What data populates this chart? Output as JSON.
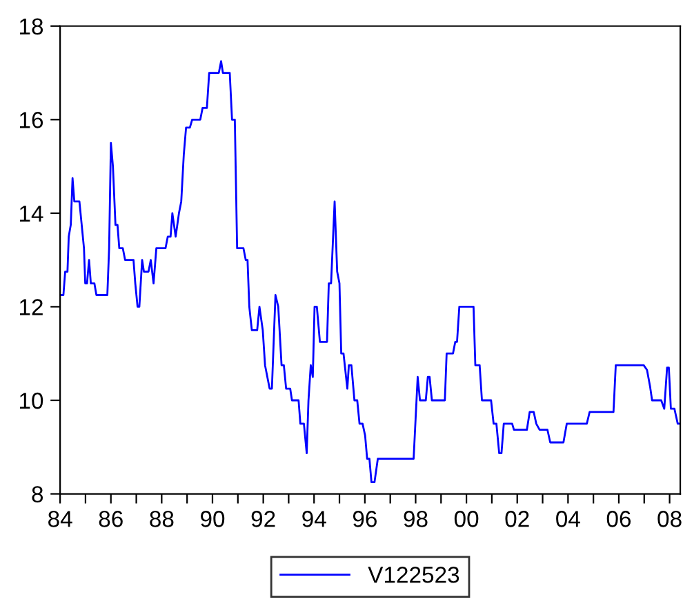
{
  "chart_data": {
    "type": "line",
    "x": [
      1984.0,
      1984.13,
      1984.2,
      1984.29,
      1984.34,
      1984.42,
      1984.49,
      1984.56,
      1984.76,
      1984.94,
      1984.99,
      1985.06,
      1985.14,
      1985.21,
      1985.35,
      1985.43,
      1985.86,
      1985.93,
      1986.0,
      1986.08,
      1986.18,
      1986.26,
      1986.33,
      1986.47,
      1986.56,
      1986.89,
      1986.96,
      1987.05,
      1987.12,
      1987.23,
      1987.3,
      1987.48,
      1987.57,
      1987.68,
      1987.79,
      1988.15,
      1988.24,
      1988.35,
      1988.42,
      1988.55,
      1988.68,
      1988.77,
      1988.87,
      1988.96,
      1989.11,
      1989.2,
      1989.52,
      1989.61,
      1989.78,
      1989.87,
      1990.25,
      1990.34,
      1990.41,
      1990.68,
      1990.77,
      1990.88,
      1990.97,
      1991.22,
      1991.31,
      1991.38,
      1991.45,
      1991.55,
      1991.76,
      1991.85,
      1991.98,
      1992.07,
      1992.25,
      1992.34,
      1992.48,
      1992.59,
      1992.72,
      1992.81,
      1992.9,
      1993.06,
      1993.13,
      1993.39,
      1993.46,
      1993.6,
      1993.71,
      1993.78,
      1993.87,
      1993.95,
      1994.02,
      1994.11,
      1994.23,
      1994.51,
      1994.58,
      1994.67,
      1994.81,
      1994.91,
      1995.0,
      1995.07,
      1995.16,
      1995.31,
      1995.37,
      1995.47,
      1995.59,
      1995.7,
      1995.79,
      1995.91,
      1996.01,
      1996.09,
      1996.18,
      1996.26,
      1996.38,
      1996.51,
      1997.92,
      1998.08,
      1998.17,
      1998.4,
      1998.48,
      1998.55,
      1998.64,
      1999.15,
      1999.22,
      1999.47,
      1999.56,
      1999.63,
      1999.72,
      2000.28,
      2000.35,
      2000.52,
      2000.61,
      2000.97,
      2001.07,
      2001.18,
      2001.29,
      2001.38,
      2001.47,
      2001.8,
      2001.87,
      2002.38,
      2002.49,
      2002.65,
      2002.75,
      2002.88,
      2003.19,
      2003.3,
      2003.82,
      2003.95,
      2004.74,
      2004.85,
      2005.79,
      2005.88,
      2006.98,
      2007.11,
      2007.23,
      2007.31,
      2007.67,
      2007.79,
      2007.9,
      2007.97,
      2008.05,
      2008.19,
      2008.32,
      2008.4
    ],
    "series": [
      {
        "name": "V122523",
        "color": "#0000ff",
        "values": [
          12.25,
          12.25,
          12.75,
          12.75,
          13.5,
          13.75,
          14.75,
          14.25,
          14.25,
          13.25,
          12.5,
          12.5,
          13.0,
          12.5,
          12.5,
          12.25,
          12.25,
          13.25,
          15.5,
          15.0,
          13.75,
          13.75,
          13.25,
          13.25,
          13.0,
          13.0,
          12.5,
          12.0,
          12.0,
          13.0,
          12.75,
          12.75,
          13.0,
          12.5,
          13.25,
          13.25,
          13.5,
          13.5,
          14.0,
          13.5,
          14.0,
          14.25,
          15.25,
          15.83,
          15.83,
          16.0,
          16.0,
          16.25,
          16.25,
          17.0,
          17.0,
          17.25,
          17.0,
          17.0,
          16.0,
          16.0,
          13.25,
          13.25,
          13.0,
          13.0,
          12.0,
          11.5,
          11.5,
          12.0,
          11.5,
          10.75,
          10.25,
          10.25,
          12.25,
          12.0,
          10.75,
          10.75,
          10.25,
          10.25,
          10.0,
          10.0,
          9.5,
          9.5,
          8.87,
          10.0,
          10.75,
          10.5,
          12.0,
          12.0,
          11.25,
          11.25,
          12.5,
          12.5,
          14.25,
          12.75,
          12.5,
          11.0,
          11.0,
          10.25,
          10.75,
          10.75,
          10.0,
          10.0,
          9.5,
          9.5,
          9.25,
          8.75,
          8.75,
          8.25,
          8.25,
          8.75,
          8.75,
          10.5,
          10.0,
          10.0,
          10.5,
          10.5,
          10.0,
          10.0,
          11.0,
          11.0,
          11.25,
          11.25,
          12.0,
          12.0,
          10.75,
          10.75,
          10.0,
          10.0,
          9.5,
          9.5,
          8.87,
          8.87,
          9.5,
          9.5,
          9.37,
          9.37,
          9.75,
          9.75,
          9.5,
          9.37,
          9.37,
          9.1,
          9.1,
          9.5,
          9.5,
          9.75,
          9.75,
          10.75,
          10.75,
          10.65,
          10.3,
          10.0,
          10.0,
          9.82,
          10.7,
          10.7,
          9.82,
          9.82,
          9.5,
          9.5
        ]
      }
    ],
    "xlim": [
      1984.0,
      2008.42
    ],
    "xticks": [
      {
        "value": 1984,
        "label": "84"
      },
      {
        "value": 1985,
        "label": null
      },
      {
        "value": 1986,
        "label": "86"
      },
      {
        "value": 1987,
        "label": null
      },
      {
        "value": 1988,
        "label": "88"
      },
      {
        "value": 1989,
        "label": null
      },
      {
        "value": 1990,
        "label": "90"
      },
      {
        "value": 1991,
        "label": null
      },
      {
        "value": 1992,
        "label": "92"
      },
      {
        "value": 1993,
        "label": null
      },
      {
        "value": 1994,
        "label": "94"
      },
      {
        "value": 1995,
        "label": null
      },
      {
        "value": 1996,
        "label": "96"
      },
      {
        "value": 1997,
        "label": null
      },
      {
        "value": 1998,
        "label": "98"
      },
      {
        "value": 1999,
        "label": null
      },
      {
        "value": 2000,
        "label": "00"
      },
      {
        "value": 2001,
        "label": null
      },
      {
        "value": 2002,
        "label": "02"
      },
      {
        "value": 2003,
        "label": null
      },
      {
        "value": 2004,
        "label": "04"
      },
      {
        "value": 2005,
        "label": null
      },
      {
        "value": 2006,
        "label": "06"
      },
      {
        "value": 2007,
        "label": null
      },
      {
        "value": 2008,
        "label": "08"
      }
    ],
    "ylim": [
      8,
      18
    ],
    "yticks": [
      8,
      10,
      12,
      14,
      16,
      18
    ],
    "grid": false,
    "legend": "bottom",
    "marker": "none",
    "line_style": "solid"
  }
}
